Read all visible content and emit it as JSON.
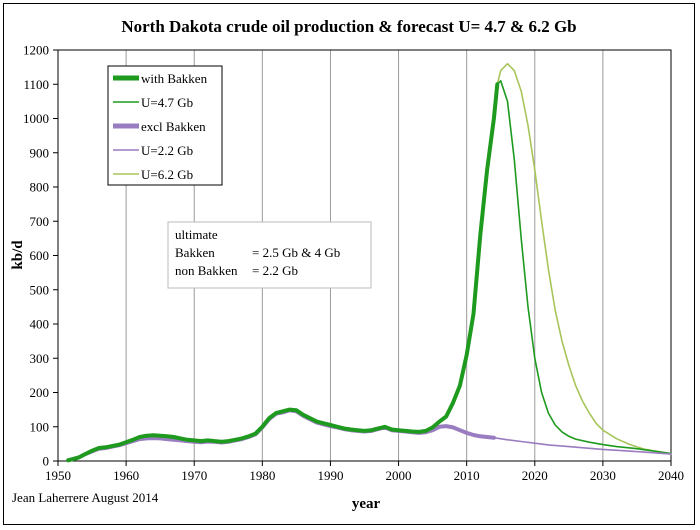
{
  "chart_data": {
    "type": "line",
    "title": "North Dakota crude oil production & forecast U= 4.7 & 6.2 Gb",
    "xlabel": "year",
    "ylabel": "kb/d",
    "xlim": [
      1950,
      2040
    ],
    "ylim": [
      0,
      1200
    ],
    "x_ticks": [
      "1950",
      "1960",
      "1970",
      "1980",
      "1990",
      "2000",
      "2010",
      "2020",
      "2030",
      "2040"
    ],
    "y_ticks": [
      "0",
      "100",
      "200",
      "300",
      "400",
      "500",
      "600",
      "700",
      "800",
      "900",
      "1000",
      "1100",
      "1200"
    ],
    "grid": "vertical",
    "legend_position": "top-left",
    "series": [
      {
        "name": "with Bakken",
        "color": "#1e9a1e",
        "style": "thick",
        "x": [
          1951.5,
          1953,
          1954,
          1955,
          1956,
          1957,
          1958,
          1959,
          1960,
          1961,
          1962,
          1963,
          1964,
          1965,
          1966,
          1967,
          1968,
          1969,
          1970,
          1971,
          1972,
          1973,
          1974,
          1975,
          1976,
          1977,
          1978,
          1979,
          1980,
          1981,
          1982,
          1983,
          1984,
          1985,
          1986,
          1987,
          1988,
          1989,
          1990,
          1991,
          1992,
          1993,
          1994,
          1995,
          1996,
          1997,
          1998,
          1999,
          2000,
          2001,
          2002,
          2003,
          2004,
          2005,
          2006,
          2007,
          2008,
          2009,
          2010,
          2011,
          2012,
          2013,
          2014,
          2014.5
        ],
        "y": [
          2,
          10,
          20,
          30,
          38,
          40,
          44,
          48,
          55,
          62,
          70,
          74,
          75,
          74,
          72,
          70,
          66,
          62,
          60,
          58,
          60,
          58,
          56,
          58,
          62,
          66,
          72,
          80,
          100,
          125,
          140,
          145,
          150,
          148,
          135,
          125,
          115,
          110,
          105,
          100,
          95,
          92,
          90,
          88,
          90,
          95,
          100,
          92,
          90,
          88,
          86,
          85,
          88,
          98,
          115,
          130,
          170,
          220,
          310,
          430,
          660,
          850,
          1000,
          1100
        ]
      },
      {
        "name": "U=4.7 Gb",
        "color": "#1e9a1e",
        "style": "thin",
        "x": [
          2014.5,
          2015,
          2016,
          2017,
          2018,
          2019,
          2020,
          2021,
          2022,
          2023,
          2024,
          2025,
          2026,
          2028,
          2030,
          2032,
          2035,
          2040
        ],
        "y": [
          1100,
          1110,
          1050,
          880,
          650,
          450,
          300,
          200,
          140,
          105,
          85,
          72,
          64,
          55,
          48,
          42,
          36,
          22
        ]
      },
      {
        "name": "excl Bakken",
        "color": "#9a7cc0",
        "style": "thick",
        "x": [
          1951.5,
          1953,
          1954,
          1955,
          1956,
          1957,
          1958,
          1959,
          1960,
          1961,
          1962,
          1963,
          1964,
          1965,
          1966,
          1967,
          1968,
          1969,
          1970,
          1971,
          1972,
          1973,
          1974,
          1975,
          1976,
          1977,
          1978,
          1979,
          1980,
          1981,
          1982,
          1983,
          1984,
          1985,
          1986,
          1987,
          1988,
          1989,
          1990,
          1991,
          1992,
          1993,
          1994,
          1995,
          1996,
          1997,
          1998,
          1999,
          2000,
          2001,
          2002,
          2003,
          2004,
          2005,
          2006,
          2007,
          2008,
          2009,
          2010,
          2011,
          2012,
          2013,
          2014
        ],
        "y": [
          2,
          10,
          20,
          28,
          36,
          38,
          42,
          46,
          52,
          58,
          64,
          66,
          67,
          66,
          64,
          62,
          60,
          58,
          56,
          55,
          57,
          56,
          54,
          56,
          60,
          64,
          70,
          78,
          98,
          122,
          138,
          142,
          148,
          145,
          132,
          122,
          112,
          107,
          102,
          98,
          93,
          90,
          88,
          86,
          88,
          93,
          98,
          90,
          88,
          86,
          84,
          82,
          84,
          90,
          100,
          102,
          98,
          90,
          82,
          76,
          72,
          70,
          68
        ]
      },
      {
        "name": "U=2.2 Gb",
        "color": "#9a7cc0",
        "style": "thin",
        "x": [
          2014,
          2016,
          2018,
          2020,
          2022,
          2025,
          2028,
          2030,
          2033,
          2036,
          2040
        ],
        "y": [
          68,
          62,
          57,
          52,
          47,
          42,
          37,
          34,
          30,
          26,
          20
        ]
      },
      {
        "name": "U=6.2 Gb",
        "color": "#a7c55a",
        "style": "thin",
        "x": [
          2014.5,
          2015,
          2016,
          2017,
          2018,
          2019,
          2020,
          2021,
          2022,
          2023,
          2024,
          2025,
          2026,
          2027,
          2028,
          2029,
          2030,
          2032,
          2034,
          2036,
          2038,
          2040
        ],
        "y": [
          1100,
          1140,
          1160,
          1140,
          1080,
          980,
          850,
          700,
          560,
          440,
          350,
          280,
          220,
          175,
          140,
          110,
          90,
          65,
          48,
          35,
          28,
          22
        ]
      }
    ],
    "annotations": {
      "box_line1": "ultimate",
      "box_line2_label": "Bakken",
      "box_line2_value": "= 2.5 Gb & 4 Gb",
      "box_line3_label": "non Bakken",
      "box_line3_value": "= 2.2 Gb",
      "credit": "Jean Laherrere August 2014"
    }
  }
}
